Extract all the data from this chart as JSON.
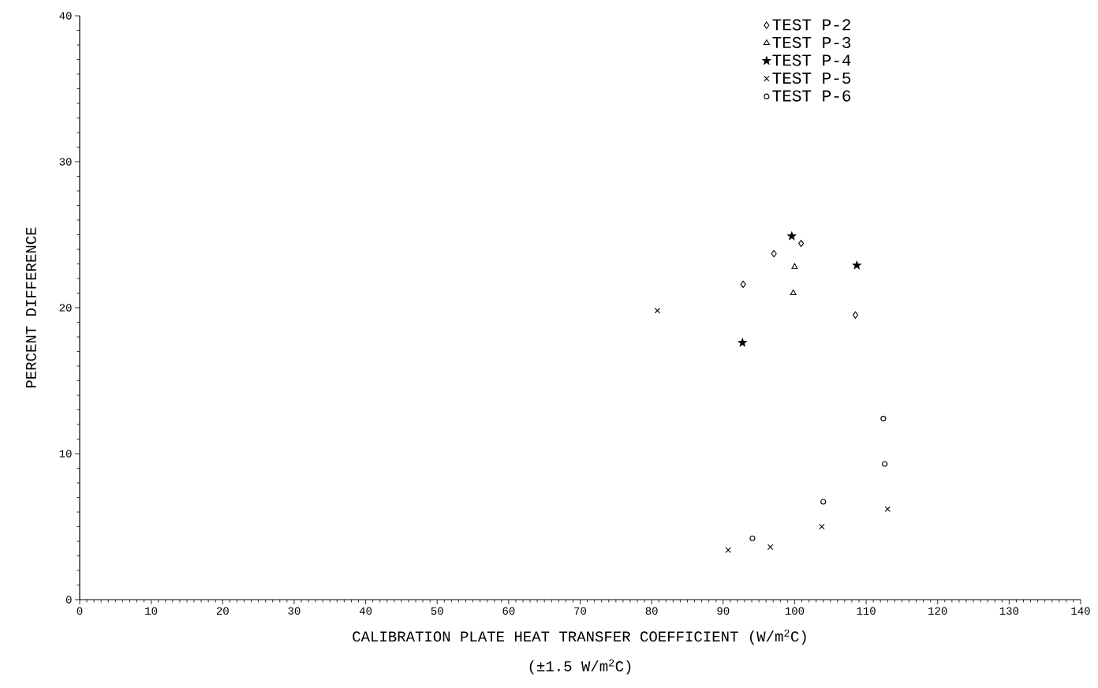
{
  "chart_data": {
    "type": "scatter",
    "xlabel": "CALIBRATION PLATE HEAT TRANSFER COEFFICIENT (W/m$^{2}$C)",
    "ylabel": "PERCENT DIFFERENCE",
    "annotations": [
      "(±1.5 W/m$^{2}$C)"
    ],
    "xlim": [
      0,
      140
    ],
    "ylim": [
      0,
      40
    ],
    "xticks": [
      0,
      10,
      20,
      30,
      40,
      50,
      60,
      70,
      80,
      90,
      100,
      110,
      120,
      130,
      140
    ],
    "yticks": [
      0,
      10,
      20,
      30,
      40
    ],
    "legend": "top right",
    "grid": false,
    "series": [
      {
        "name": "TEST P-2",
        "color": "#000000",
        "marker": "diamond",
        "x": [
          92.8,
          97.1,
          100.9,
          108.5
        ],
        "values": [
          21.6,
          23.7,
          24.4,
          19.5
        ]
      },
      {
        "name": "TEST P-3",
        "color": "#000000",
        "marker": "triangle",
        "x": [
          100.0,
          99.8
        ],
        "values": [
          22.8,
          21.0
        ]
      },
      {
        "name": "TEST P-4",
        "color": "#000000",
        "marker": "star",
        "x": [
          99.6,
          108.7,
          92.7
        ],
        "values": [
          24.9,
          22.9,
          17.6
        ]
      },
      {
        "name": "TEST P-5",
        "color": "#000000",
        "marker": "cross",
        "x": [
          80.8,
          90.7,
          96.6,
          103.8,
          113.0
        ],
        "values": [
          19.8,
          3.4,
          3.6,
          5.0,
          6.2
        ]
      },
      {
        "name": "TEST P-6",
        "color": "#000000",
        "marker": "circle",
        "x": [
          112.4,
          112.6,
          104.0,
          94.1
        ],
        "values": [
          12.4,
          9.3,
          6.7,
          4.2
        ]
      }
    ]
  }
}
